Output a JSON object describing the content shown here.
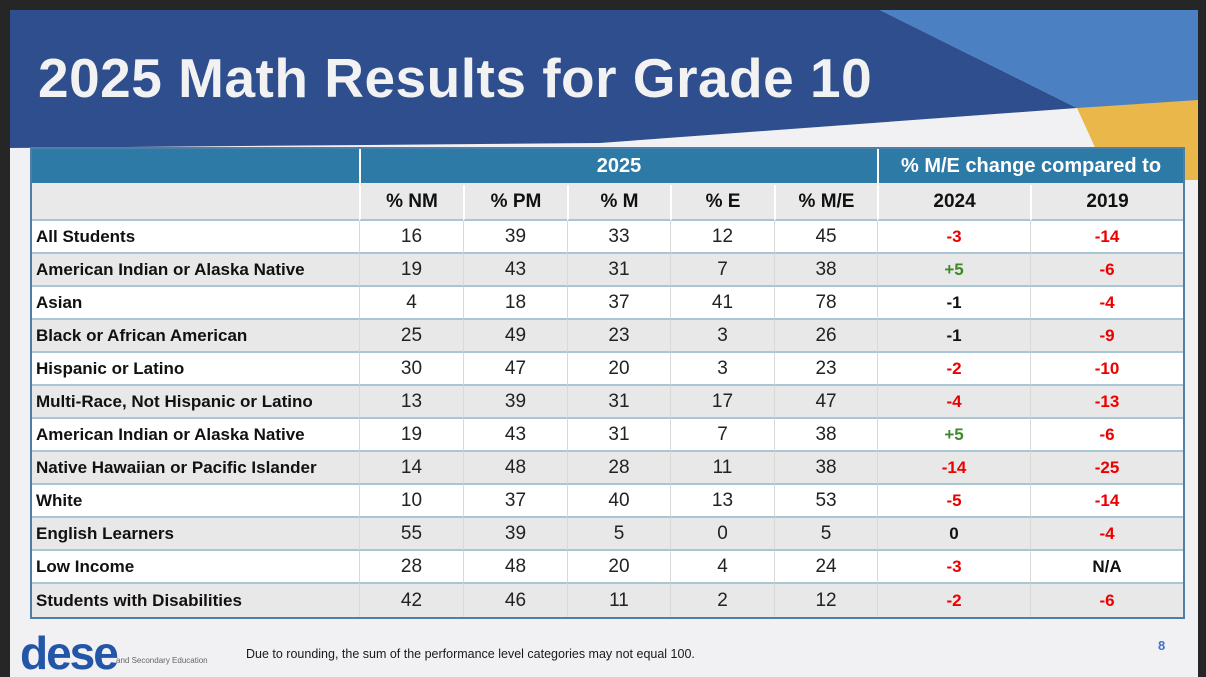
{
  "slide": {
    "title": "2025 Math Results for Grade 10",
    "page_number": "8",
    "footnote": "Due to rounding, the sum of the performance level categories may not equal 100.",
    "logo": {
      "wordmark": "dese",
      "subtext": "and Secondary Education"
    }
  },
  "colors": {
    "banner_blue": "#2F4E8E",
    "banner_light_blue": "#4B80C3",
    "banner_gold": "#E9B74A",
    "table_header_teal": "#2E7AA6",
    "row_alt_gray": "#E8E8E8",
    "row_divider_blue": "#A9C6D6",
    "negative_red": "#EC0000",
    "positive_green": "#3E8A28",
    "page_number_blue": "#4472C4"
  },
  "table": {
    "group_headers": {
      "year": "2025",
      "change": "% M/E change compared to"
    },
    "columns": [
      "% NM",
      "% PM",
      "% M",
      "% E",
      "% M/E",
      "2024",
      "2019"
    ],
    "rows": [
      {
        "label": "All Students",
        "values": [
          "16",
          "39",
          "33",
          "12",
          "45"
        ],
        "change_2024": "-3",
        "change_2024_color": "red",
        "change_2019": "-14",
        "change_2019_color": "red"
      },
      {
        "label": "American Indian or Alaska Native",
        "values": [
          "19",
          "43",
          "31",
          "7",
          "38"
        ],
        "change_2024": "+5",
        "change_2024_color": "green",
        "change_2019": "-6",
        "change_2019_color": "red"
      },
      {
        "label": "Asian",
        "values": [
          "4",
          "18",
          "37",
          "41",
          "78"
        ],
        "change_2024": "-1",
        "change_2024_color": "black",
        "change_2019": "-4",
        "change_2019_color": "red"
      },
      {
        "label": "Black or African American",
        "values": [
          "25",
          "49",
          "23",
          "3",
          "26"
        ],
        "change_2024": "-1",
        "change_2024_color": "black",
        "change_2019": "-9",
        "change_2019_color": "red"
      },
      {
        "label": "Hispanic or Latino",
        "values": [
          "30",
          "47",
          "20",
          "3",
          "23"
        ],
        "change_2024": "-2",
        "change_2024_color": "red",
        "change_2019": "-10",
        "change_2019_color": "red"
      },
      {
        "label": "Multi-Race, Not Hispanic or Latino",
        "values": [
          "13",
          "39",
          "31",
          "17",
          "47"
        ],
        "change_2024": "-4",
        "change_2024_color": "red",
        "change_2019": "-13",
        "change_2019_color": "red"
      },
      {
        "label": "American Indian or Alaska Native",
        "values": [
          "19",
          "43",
          "31",
          "7",
          "38"
        ],
        "change_2024": "+5",
        "change_2024_color": "green",
        "change_2019": "-6",
        "change_2019_color": "red"
      },
      {
        "label": "Native Hawaiian or Pacific Islander",
        "values": [
          "14",
          "48",
          "28",
          "11",
          "38"
        ],
        "change_2024": "-14",
        "change_2024_color": "red",
        "change_2019": "-25",
        "change_2019_color": "red"
      },
      {
        "label": "White",
        "values": [
          "10",
          "37",
          "40",
          "13",
          "53"
        ],
        "change_2024": "-5",
        "change_2024_color": "red",
        "change_2019": "-14",
        "change_2019_color": "red"
      },
      {
        "label": "English Learners",
        "values": [
          "55",
          "39",
          "5",
          "0",
          "5"
        ],
        "change_2024": "0",
        "change_2024_color": "black",
        "change_2019": "-4",
        "change_2019_color": "red"
      },
      {
        "label": "Low Income",
        "values": [
          "28",
          "48",
          "20",
          "4",
          "24"
        ],
        "change_2024": "-3",
        "change_2024_color": "red",
        "change_2019": "N/A",
        "change_2019_color": "black"
      },
      {
        "label": "Students with Disabilities",
        "values": [
          "42",
          "46",
          "11",
          "2",
          "12"
        ],
        "change_2024": "-2",
        "change_2024_color": "red",
        "change_2019": "-6",
        "change_2019_color": "red"
      }
    ]
  }
}
